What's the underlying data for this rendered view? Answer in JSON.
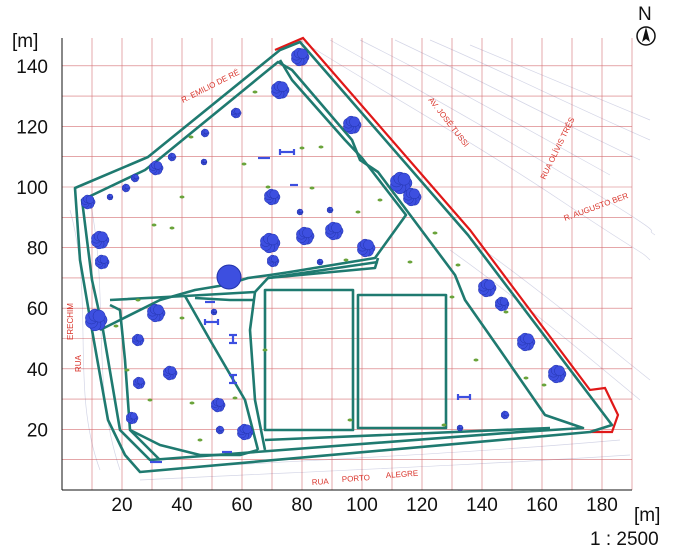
{
  "map": {
    "x_unit": "[m]",
    "y_unit": "[m]",
    "x_ticks": [
      20,
      40,
      60,
      80,
      100,
      120,
      140,
      160,
      180
    ],
    "y_ticks": [
      20,
      40,
      60,
      80,
      100,
      120,
      140
    ],
    "scale_label": "1 : 2500",
    "north_label": "N",
    "streets": [
      {
        "name": "R. EMILIO DE RÉ"
      },
      {
        "name": "AV. JOSÉ TUSSI"
      },
      {
        "name": "RUA OLÍVIS TRÊS"
      },
      {
        "name": "R. AUGUSTO BER"
      },
      {
        "name": "ERECHIM"
      },
      {
        "name": "RUA"
      },
      {
        "name": "RUA"
      },
      {
        "name": "PORTO"
      },
      {
        "name": "ALEGRE"
      }
    ],
    "colors": {
      "grid": "#c4343a",
      "path": "#1f7a70",
      "boundary": "#e01818",
      "trees": "#3d4fe0",
      "street_text": "#d9342b"
    },
    "icons": [
      "north-arrow-icon"
    ]
  }
}
